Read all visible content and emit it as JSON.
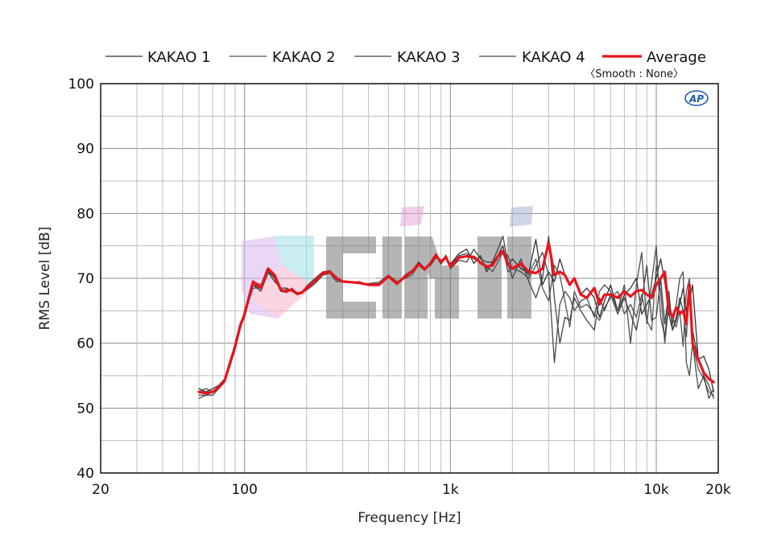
{
  "chart_data": {
    "type": "line",
    "xlabel": "Frequency [Hz]",
    "ylabel": "RMS Level [dB]",
    "xscale": "log",
    "xlim": [
      20,
      20000
    ],
    "ylim": [
      40,
      100
    ],
    "x_ticks": [
      20,
      100,
      1000,
      10000,
      20000
    ],
    "x_tick_labels": [
      "20",
      "100",
      "1k",
      "10k",
      "20k"
    ],
    "y_ticks": [
      40,
      50,
      60,
      70,
      80,
      90,
      100
    ],
    "y_tick_labels": [
      "40",
      "50",
      "60",
      "70",
      "80",
      "90",
      "100"
    ],
    "grid": true,
    "legend_position": "top",
    "smooth_note": "〈Smooth : None〉",
    "badge": "AP",
    "watermark": "CIKI",
    "series": [
      {
        "name": "KAKAO 1",
        "color": "#333333",
        "x": [
          60,
          65,
          70,
          75,
          80,
          85,
          90,
          95,
          100,
          110,
          120,
          130,
          140,
          150,
          160,
          170,
          180,
          190,
          200,
          220,
          240,
          260,
          280,
          300,
          330,
          360,
          400,
          450,
          500,
          550,
          600,
          650,
          700,
          750,
          800,
          850,
          900,
          950,
          1000,
          1100,
          1200,
          1300,
          1400,
          1500,
          1600,
          1700,
          1800,
          1900,
          2000,
          2200,
          2400,
          2600,
          2800,
          3000,
          3200,
          3400,
          3600,
          3800,
          4000,
          4300,
          4600,
          5000,
          5300,
          5600,
          6000,
          6500,
          7000,
          7500,
          8000,
          8500,
          9000,
          9500,
          10000,
          10500,
          11000,
          11500,
          12000,
          12500,
          13000,
          13500,
          14000,
          14500,
          15000,
          16000,
          17000,
          18000,
          19000
        ],
        "values": [
          53,
          52.5,
          53,
          53.5,
          54.5,
          57,
          59.5,
          62.5,
          64,
          69,
          68.5,
          71,
          69.5,
          68.5,
          68.5,
          68,
          67.5,
          68,
          68.5,
          69.5,
          71,
          70.8,
          69.8,
          69.5,
          69.4,
          69.3,
          69,
          69,
          70.3,
          69.3,
          70.2,
          71,
          72.5,
          71.6,
          72,
          73.2,
          72.8,
          73,
          72.2,
          73.8,
          74.5,
          72.3,
          73.5,
          71,
          72.5,
          73.5,
          75,
          72,
          73,
          71.5,
          70.8,
          76,
          69,
          71,
          69.5,
          73,
          70.5,
          69,
          70,
          67.5,
          68.5,
          67,
          64,
          66.5,
          69,
          65,
          67.5,
          68.5,
          70,
          64.5,
          66,
          67.5,
          70,
          73,
          69.5,
          64.5,
          62,
          63.5,
          66,
          68.5,
          65,
          66.5,
          69,
          57.5,
          58,
          56,
          52.5
        ]
      },
      {
        "name": "KAKAO 2",
        "color": "#555555",
        "x": [
          60,
          65,
          70,
          75,
          80,
          85,
          90,
          95,
          100,
          110,
          120,
          130,
          140,
          150,
          160,
          170,
          180,
          190,
          200,
          220,
          240,
          260,
          280,
          300,
          330,
          360,
          400,
          450,
          500,
          550,
          600,
          650,
          700,
          750,
          800,
          850,
          900,
          950,
          1000,
          1100,
          1200,
          1300,
          1400,
          1500,
          1600,
          1700,
          1800,
          1900,
          2000,
          2200,
          2400,
          2600,
          2800,
          3000,
          3200,
          3400,
          3600,
          3800,
          4000,
          4300,
          4600,
          5000,
          5300,
          5600,
          6000,
          6500,
          7000,
          7500,
          8000,
          8500,
          9000,
          9500,
          10000,
          10500,
          11000,
          11500,
          12000,
          12500,
          13000,
          13500,
          14000,
          14500,
          15000,
          16000,
          17000,
          18000,
          19000
        ],
        "values": [
          52,
          52,
          52.5,
          53.5,
          54,
          56.5,
          59,
          62,
          65,
          69.5,
          69,
          71.5,
          70,
          68,
          67.8,
          68.5,
          67.5,
          67.8,
          68.8,
          70,
          71,
          71.2,
          70.2,
          69.4,
          69.5,
          69.2,
          69.2,
          69.4,
          70.5,
          69.5,
          70,
          70.5,
          72,
          71.2,
          72.5,
          73.8,
          72.2,
          73.6,
          71.8,
          73.2,
          73.5,
          73.2,
          72.5,
          72,
          71,
          72.5,
          74,
          73.5,
          71.5,
          72,
          70.5,
          73,
          68.5,
          66.5,
          72,
          70.5,
          66.5,
          62.5,
          68,
          65.5,
          66,
          64.5,
          63.5,
          65.5,
          67,
          68,
          64.5,
          66,
          64,
          67.5,
          63.5,
          62,
          72,
          68,
          60,
          66,
          64,
          62.5,
          65,
          59.5,
          68,
          70,
          60,
          56,
          54.5,
          52.5,
          52
        ]
      },
      {
        "name": "KAKAO 3",
        "color": "#444444",
        "x": [
          60,
          65,
          70,
          75,
          80,
          85,
          90,
          95,
          100,
          110,
          120,
          130,
          140,
          150,
          160,
          170,
          180,
          190,
          200,
          220,
          240,
          260,
          280,
          300,
          330,
          360,
          400,
          450,
          500,
          550,
          600,
          650,
          700,
          750,
          800,
          850,
          900,
          950,
          1000,
          1100,
          1200,
          1300,
          1400,
          1500,
          1600,
          1700,
          1800,
          1900,
          2000,
          2200,
          2400,
          2600,
          2800,
          3000,
          3200,
          3400,
          3600,
          3800,
          4000,
          4300,
          4600,
          5000,
          5300,
          5600,
          6000,
          6500,
          7000,
          7500,
          8000,
          8500,
          9000,
          9500,
          10000,
          10500,
          11000,
          11500,
          12000,
          12500,
          13000,
          13500,
          14000,
          14500,
          15000,
          16000,
          17000,
          18000,
          19000
        ],
        "values": [
          52.5,
          53,
          52.5,
          53,
          54,
          57,
          60,
          63,
          64.5,
          69,
          68,
          70.8,
          70.5,
          68.2,
          68,
          68.2,
          67.8,
          67.8,
          68.2,
          69.2,
          70.5,
          70.8,
          69.5,
          69.5,
          69.3,
          69.2,
          69.1,
          69.2,
          70.2,
          69,
          70.5,
          71.2,
          72.2,
          71.5,
          72.2,
          73.5,
          72.2,
          73.2,
          71.5,
          72.8,
          72.5,
          74.5,
          73,
          72.5,
          72.5,
          74.5,
          76.5,
          72.5,
          70,
          73,
          69.5,
          67,
          70,
          76.5,
          67,
          60,
          64,
          63.5,
          67,
          65,
          63.5,
          62,
          67,
          65,
          67.5,
          64.5,
          67,
          64.5,
          62,
          66.5,
          72,
          63.5,
          64,
          70,
          63,
          68,
          62,
          64,
          67,
          65,
          61,
          69,
          62,
          57.5,
          55,
          53.5,
          51.5
        ]
      },
      {
        "name": "KAKAO 4",
        "color": "#4a4a4a",
        "x": [
          60,
          65,
          70,
          75,
          80,
          85,
          90,
          95,
          100,
          110,
          120,
          130,
          140,
          150,
          160,
          170,
          180,
          190,
          200,
          220,
          240,
          260,
          280,
          300,
          330,
          360,
          400,
          450,
          500,
          550,
          600,
          650,
          700,
          750,
          800,
          850,
          900,
          950,
          1000,
          1100,
          1200,
          1300,
          1400,
          1500,
          1600,
          1700,
          1800,
          1900,
          2000,
          2200,
          2400,
          2600,
          2800,
          3000,
          3200,
          3400,
          3600,
          3800,
          4000,
          4300,
          4600,
          5000,
          5300,
          5600,
          6000,
          6500,
          7000,
          7500,
          8000,
          8500,
          9000,
          9500,
          10000,
          10500,
          11000,
          11500,
          12000,
          12500,
          13000,
          13500,
          14000,
          14500,
          15000,
          16000,
          17000,
          18000,
          19000
        ],
        "values": [
          51.5,
          52,
          52,
          53,
          54,
          56.5,
          59.5,
          62.5,
          64.5,
          68.5,
          68.5,
          71.2,
          70,
          68,
          68.3,
          68,
          67.6,
          68,
          68.5,
          69.8,
          70.6,
          71,
          70,
          69.6,
          69.3,
          69.5,
          69,
          69,
          70.5,
          69.2,
          70.3,
          70.8,
          72.3,
          71.4,
          72.3,
          73.5,
          72.5,
          73.4,
          72,
          73.5,
          73.8,
          73,
          72.5,
          71.5,
          72,
          73.5,
          75,
          71,
          71.5,
          71,
          70,
          72,
          74,
          70.5,
          57,
          66,
          68,
          67,
          65,
          66.5,
          67,
          64,
          68,
          69,
          68,
          65,
          69,
          60,
          69,
          74,
          63,
          69.5,
          75,
          64,
          61,
          67,
          63,
          66,
          70,
          71,
          57,
          55,
          60,
          53,
          55,
          51.5,
          53
        ]
      },
      {
        "name": "Average",
        "color": "#e8141c",
        "x": [
          60,
          65,
          70,
          75,
          80,
          85,
          90,
          95,
          100,
          110,
          120,
          130,
          140,
          150,
          160,
          170,
          180,
          190,
          200,
          220,
          240,
          260,
          280,
          300,
          330,
          360,
          400,
          450,
          500,
          550,
          600,
          650,
          700,
          750,
          800,
          850,
          900,
          950,
          1000,
          1100,
          1200,
          1300,
          1400,
          1500,
          1600,
          1700,
          1800,
          1900,
          2000,
          2200,
          2400,
          2600,
          2800,
          3000,
          3200,
          3400,
          3600,
          3800,
          4000,
          4300,
          4600,
          5000,
          5300,
          5600,
          6000,
          6500,
          7000,
          7500,
          8000,
          8500,
          9000,
          9500,
          10000,
          10500,
          11000,
          11500,
          12000,
          12500,
          13000,
          13500,
          14000,
          14500,
          15000,
          16000,
          17000,
          18000,
          19000
        ],
        "values": [
          52.5,
          52.3,
          52.5,
          53.2,
          54.2,
          57,
          59.5,
          62.5,
          64.5,
          69.5,
          68.5,
          71.5,
          70.5,
          68.2,
          68,
          68.3,
          67.6,
          67.8,
          68.5,
          69.6,
          70.8,
          71,
          70,
          69.5,
          69.4,
          69.3,
          69,
          69,
          70.3,
          69.2,
          70.2,
          71,
          72.2,
          71.4,
          72.3,
          73.6,
          72.5,
          73.3,
          71.8,
          73.2,
          73.4,
          73.3,
          72.4,
          71.8,
          72,
          73.4,
          74.2,
          72.2,
          71.5,
          72.3,
          71,
          70.8,
          71.5,
          75.5,
          70.5,
          71,
          70.5,
          69,
          70,
          67.5,
          67,
          68.5,
          66,
          67.5,
          67.5,
          67,
          68,
          67.2,
          68,
          68.2,
          67.5,
          67,
          69,
          70,
          71,
          65,
          64,
          65.5,
          64.5,
          65,
          63,
          69,
          60,
          57.5,
          55.5,
          54.5,
          54
        ]
      }
    ]
  }
}
